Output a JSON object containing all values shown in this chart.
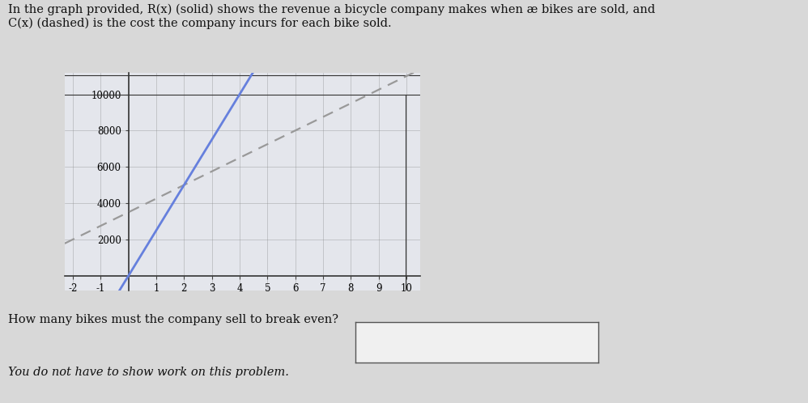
{
  "title_text": "In the graph provided, R(x) (solid) shows the revenue a bicycle company makes when æ bikes are sold, and\nC(x) (dashed) is the cost the company incurs for each bike sold.",
  "question_text": "How many bikes must the company sell to break even?",
  "note_text": "You do not have to show work on this problem.",
  "xlim": [
    -2.3,
    10.5
  ],
  "ylim": [
    -800,
    11200
  ],
  "xticks": [
    -2,
    -1,
    1,
    2,
    3,
    4,
    5,
    6,
    7,
    8,
    9,
    10
  ],
  "yticks": [
    2000,
    4000,
    6000,
    8000,
    10000
  ],
  "R_slope": 2500,
  "R_intercept": 0,
  "C_slope": 750,
  "C_intercept": 3500,
  "R_color": "#6680dd",
  "C_color": "#999999",
  "background_color": "#d8d8d8",
  "plot_bg": "#e4e6ec",
  "grid_color": "#888888",
  "text_color": "#111111"
}
